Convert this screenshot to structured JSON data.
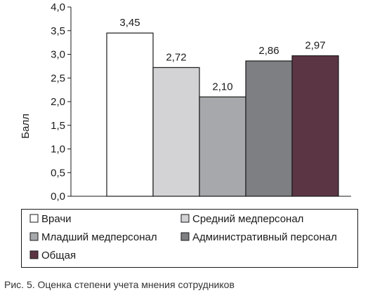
{
  "chart_data": {
    "type": "bar",
    "ylabel": "Балл",
    "ylim": [
      0,
      4
    ],
    "ytick_labels": [
      "0,0",
      "0,5",
      "1,0",
      "1,5",
      "2,0",
      "2,5",
      "3,0",
      "3,5",
      "4,0"
    ],
    "grid": false,
    "legend_position": "bottom",
    "series": [
      {
        "name": "Врачи",
        "value": 3.45,
        "label": "3,45",
        "color": "#ffffff"
      },
      {
        "name": "Средний медперсонал",
        "value": 2.72,
        "label": "2,72",
        "color": "#d3d3d5"
      },
      {
        "name": "Младший медперсонал",
        "value": 2.1,
        "label": "2,10",
        "color": "#a7a8ab"
      },
      {
        "name": "Административный персонал",
        "value": 2.86,
        "label": "2,86",
        "color": "#7e7f82"
      },
      {
        "name": "Общая",
        "value": 2.97,
        "label": "2,97",
        "color": "#5c3544"
      }
    ]
  },
  "caption": "Рис. 5. Оценка степени учета мнения сотрудников"
}
